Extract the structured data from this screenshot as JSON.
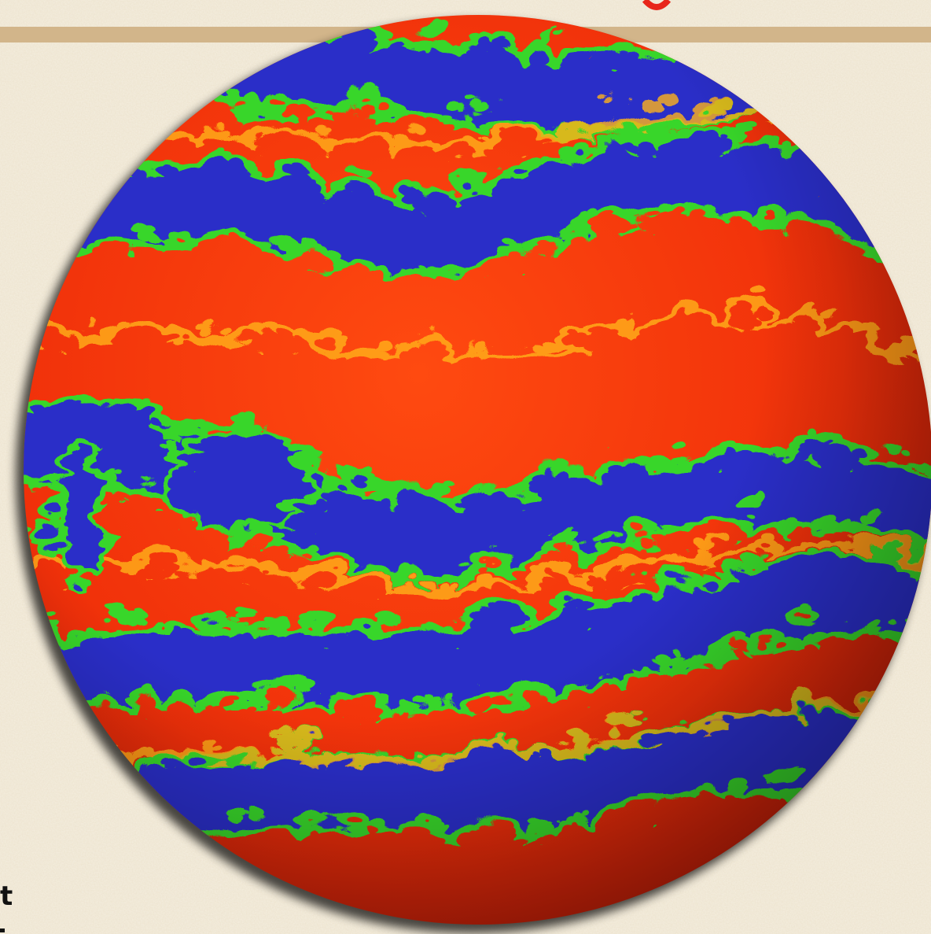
{
  "slide": {
    "corner_text": "t"
  }
}
